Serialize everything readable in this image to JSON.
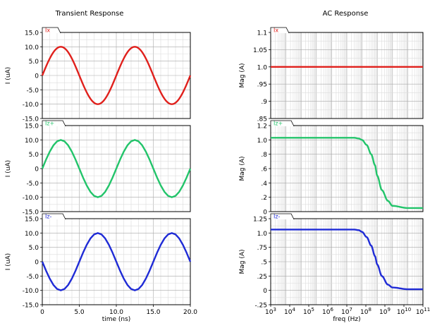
{
  "titles": {
    "transient": "Transient Response",
    "ac": "AC Response"
  },
  "chart_data": [
    {
      "type": "line",
      "panel": "transient-ix",
      "series": [
        {
          "name": "Ix",
          "color": "#e0201c",
          "amplitude": 10,
          "period_ns": 10,
          "phase": "sin",
          "x": [
            0,
            0.5,
            1,
            1.5,
            2,
            2.5,
            3,
            3.5,
            4,
            4.5,
            5,
            5.5,
            6,
            6.5,
            7,
            7.5,
            8,
            8.5,
            9,
            9.5,
            10,
            10.5,
            11,
            11.5,
            12,
            12.5,
            13,
            13.5,
            14,
            14.5,
            15,
            15.5,
            16,
            16.5,
            17,
            17.5,
            18,
            18.5,
            19,
            19.5,
            20
          ],
          "y": [
            0,
            3.09,
            5.88,
            8.09,
            9.51,
            10,
            9.51,
            8.09,
            5.88,
            3.09,
            0,
            -3.09,
            -5.88,
            -8.09,
            -9.51,
            -10,
            -9.51,
            -8.09,
            -5.88,
            -3.09,
            0,
            3.09,
            5.88,
            8.09,
            9.51,
            10,
            9.51,
            8.09,
            5.88,
            3.09,
            0,
            -3.09,
            -5.88,
            -8.09,
            -9.51,
            -10,
            -9.51,
            -8.09,
            -5.88,
            -3.09,
            0
          ]
        }
      ],
      "xlim": [
        0,
        20
      ],
      "ylim": [
        -15,
        15
      ],
      "ylabel": "I (uA)",
      "yticks": [
        "15.0",
        "10.0",
        "5.0",
        "0",
        "-5.0",
        "-10.0",
        "-15.0"
      ],
      "grid": true
    },
    {
      "type": "line",
      "panel": "transient-iz-plus",
      "series": [
        {
          "name": "Iz+",
          "color": "#22c46a",
          "x": [
            0,
            0.5,
            1,
            1.5,
            2,
            2.5,
            3,
            3.5,
            4,
            4.5,
            5,
            5.5,
            6,
            6.5,
            7,
            7.5,
            8,
            8.5,
            9,
            9.5,
            10,
            10.5,
            11,
            11.5,
            12,
            12.5,
            13,
            13.5,
            14,
            14.5,
            15,
            15.5,
            16,
            16.5,
            17,
            17.5,
            18,
            18.5,
            19,
            19.5,
            20
          ],
          "y": [
            0,
            3.09,
            5.88,
            8.09,
            9.51,
            10,
            9.51,
            8.09,
            5.88,
            3.09,
            0,
            -3.09,
            -5.88,
            -8.09,
            -9.51,
            -10,
            -9.51,
            -8.09,
            -5.88,
            -3.09,
            0,
            3.09,
            5.88,
            8.09,
            9.51,
            10,
            9.51,
            8.09,
            5.88,
            3.09,
            0,
            -3.09,
            -5.88,
            -8.09,
            -9.51,
            -10,
            -9.51,
            -8.09,
            -5.88,
            -3.09,
            0
          ]
        }
      ],
      "xlim": [
        0,
        20
      ],
      "ylim": [
        -15,
        15
      ],
      "ylabel": "I (uA)",
      "yticks": [
        "15.0",
        "10.0",
        "5.0",
        "0",
        "-5.0",
        "-10.0",
        "-15.0"
      ],
      "grid": true
    },
    {
      "type": "line",
      "panel": "transient-iz-minus",
      "series": [
        {
          "name": "Iz-",
          "color": "#1f2bd6",
          "x": [
            0,
            0.5,
            1,
            1.5,
            2,
            2.5,
            3,
            3.5,
            4,
            4.5,
            5,
            5.5,
            6,
            6.5,
            7,
            7.5,
            8,
            8.5,
            9,
            9.5,
            10,
            10.5,
            11,
            11.5,
            12,
            12.5,
            13,
            13.5,
            14,
            14.5,
            15,
            15.5,
            16,
            16.5,
            17,
            17.5,
            18,
            18.5,
            19,
            19.5,
            20
          ],
          "y": [
            0,
            -3.09,
            -5.88,
            -8.09,
            -9.51,
            -10,
            -9.51,
            -8.09,
            -5.88,
            -3.09,
            0,
            3.09,
            5.88,
            8.09,
            9.51,
            10,
            9.51,
            8.09,
            5.88,
            3.09,
            0,
            -3.09,
            -5.88,
            -8.09,
            -9.51,
            -10,
            -9.51,
            -8.09,
            -5.88,
            -3.09,
            0,
            3.09,
            5.88,
            8.09,
            9.51,
            10,
            9.51,
            8.09,
            5.88,
            3.09,
            0
          ]
        }
      ],
      "xlim": [
        0,
        20
      ],
      "ylim": [
        -15,
        15
      ],
      "ylabel": "I (uA)",
      "xlabel": "time (ns)",
      "yticks": [
        "15.0",
        "10.0",
        "5.0",
        "0",
        "-5.0",
        "-10.0",
        "-15.0"
      ],
      "xticks": [
        "0",
        "5.0",
        "10.0",
        "15.0",
        "20.0"
      ],
      "grid": true
    },
    {
      "type": "line",
      "panel": "ac-ix",
      "series": [
        {
          "name": "Ix",
          "color": "#e0201c",
          "x": [
            1000,
            10000000000000
          ],
          "y": [
            1.0,
            1.0
          ]
        }
      ],
      "xscale": "log",
      "xlim": [
        1000,
        10000000000000
      ],
      "ylim": [
        0.85,
        1.1
      ],
      "ylabel": "Mag (A)",
      "yticks": [
        "1.1",
        "1.05",
        "1.0",
        ".95",
        ".9",
        ".85"
      ],
      "grid": true
    },
    {
      "type": "line",
      "panel": "ac-iz-plus",
      "series": [
        {
          "name": "Iz+",
          "color": "#22c46a",
          "x": [
            1000,
            10000,
            100000,
            1000000,
            10000000,
            100000000,
            300000000,
            600000000,
            1000000000,
            2000000000,
            4000000000,
            7000000000,
            10000000000,
            20000000000,
            50000000000,
            100000000000,
            1000000000000,
            10000000000000
          ],
          "y": [
            1.03,
            1.03,
            1.03,
            1.03,
            1.03,
            1.03,
            1.03,
            1.02,
            1.0,
            0.93,
            0.8,
            0.65,
            0.5,
            0.3,
            0.15,
            0.08,
            0.05,
            0.05
          ]
        }
      ],
      "xscale": "log",
      "xlim": [
        1000,
        10000000000000
      ],
      "ylim": [
        0,
        1.2
      ],
      "ylabel": "Mag (A)",
      "yticks": [
        "1.2",
        "1.0",
        ".8",
        ".6",
        ".4",
        ".2",
        "0"
      ],
      "grid": true
    },
    {
      "type": "line",
      "panel": "ac-iz-minus",
      "series": [
        {
          "name": "Iz-",
          "color": "#1f2bd6",
          "x": [
            1000,
            10000,
            100000,
            1000000,
            10000000,
            100000000,
            300000000,
            600000000,
            1000000000,
            2000000000,
            4000000000,
            7000000000,
            10000000000,
            20000000000,
            50000000000,
            100000000000,
            1000000000000,
            10000000000000
          ],
          "y": [
            1.06,
            1.06,
            1.06,
            1.06,
            1.06,
            1.06,
            1.06,
            1.05,
            1.02,
            0.93,
            0.78,
            0.6,
            0.45,
            0.25,
            0.1,
            0.05,
            0.02,
            0.02
          ]
        }
      ],
      "xscale": "log",
      "xlim": [
        1000,
        10000000000000
      ],
      "ylim": [
        -0.25,
        1.25
      ],
      "ylabel": "Mag (A)",
      "xlabel": "freq (Hz)",
      "yticks": [
        "1.25",
        "1.0",
        ".75",
        ".5",
        ".25",
        "0",
        "-.25"
      ],
      "xticks": [
        "10^3",
        "10^4",
        "10^5",
        "10^6",
        "10^7",
        "10^8",
        "10^9",
        "10^10",
        "10^11"
      ],
      "grid": true
    }
  ]
}
